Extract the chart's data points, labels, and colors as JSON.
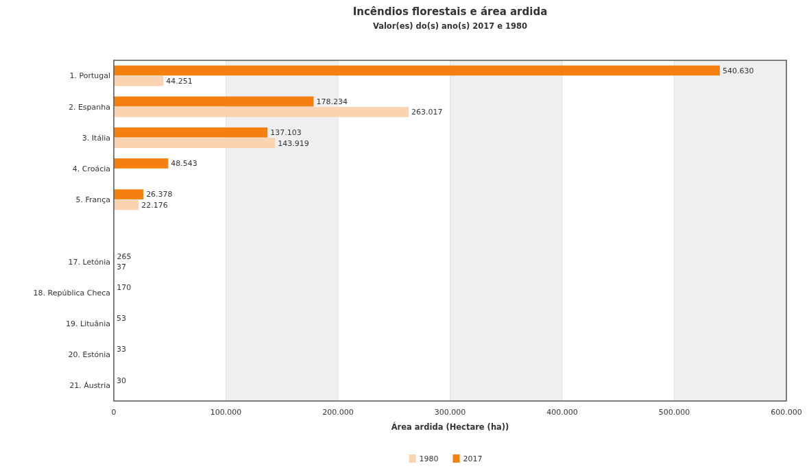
{
  "chart_data": {
    "type": "bar",
    "orientation": "horizontal",
    "title": "Incêndios florestais e área ardida",
    "subtitle": "Valor(es) do(s) ano(s) 2017 e 1980",
    "xlabel": "Área ardida (Hectare (ha))",
    "categories": [
      "1. Portugal",
      "2. Espanha",
      "3. Itália",
      "4. Croácia",
      "5. França",
      null,
      "17. Letónia",
      "18. República Checa",
      "19. Lituânia",
      "20. Estónia",
      "21. Áustria"
    ],
    "series": [
      {
        "name": "2017",
        "color": "#f57f0f",
        "values": [
          540630,
          178234,
          137103,
          48543,
          26378,
          null,
          265,
          170,
          53,
          33,
          30
        ],
        "value_labels": [
          "540.630",
          "178.234",
          "137.103",
          "48.543",
          "26.378",
          null,
          "265",
          "170",
          "53",
          "33",
          "30"
        ]
      },
      {
        "name": "1980",
        "color": "#fbd3b0",
        "values": [
          44251,
          263017,
          143919,
          null,
          22176,
          null,
          37,
          null,
          null,
          null,
          null
        ],
        "value_labels": [
          "44.251",
          "263.017",
          "143.919",
          null,
          "22.176",
          null,
          "37",
          null,
          null,
          null,
          null
        ]
      }
    ],
    "xlim": [
      0,
      600000
    ],
    "xticks": [
      0,
      {
        "value": 100000,
        "label": "100.000"
      },
      {
        "value": 200000,
        "label": "200.000"
      },
      {
        "value": 300000,
        "label": "300.000"
      },
      {
        "value": 400000,
        "label": "400.000"
      },
      {
        "value": 500000,
        "label": "500.000"
      },
      {
        "value": 600000,
        "label": "600.000"
      }
    ],
    "bands": [
      {
        "axis": "x",
        "from": 100000,
        "to": 200000,
        "color": "#efefef"
      },
      {
        "axis": "x",
        "from": 300000,
        "to": 400000,
        "color": "#efefef"
      },
      {
        "axis": "x",
        "from": 500000,
        "to": 600000,
        "color": "#efefef"
      }
    ],
    "grid": "x",
    "legend": "bottom"
  }
}
